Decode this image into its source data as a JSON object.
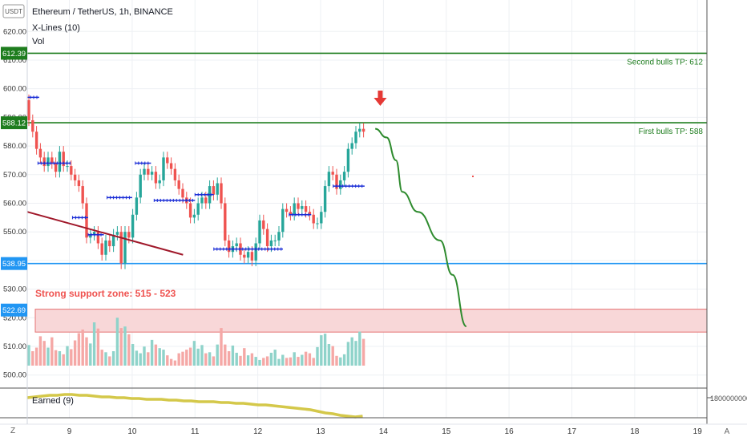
{
  "header": {
    "symbol_line": "Ethereum / TetherUS, 1h, BINANCE",
    "indicator": "X-Lines (10)",
    "volume_label": "Vol"
  },
  "corner": {
    "currency": "USDT",
    "z_label": "Z",
    "a_label": "A"
  },
  "colors": {
    "up": "#26a69a",
    "down": "#ef5350",
    "target_line": "#1e7d1e",
    "support_line": "#2196f3",
    "support_zone_fill": "#f8d7d8",
    "support_zone_border": "#e57373",
    "trendline": "#a0182a",
    "forecast": "#2e8b2e",
    "arrow": "#e53935",
    "xline_marker": "#1a2dd6",
    "oscillator": "#d4c84a"
  },
  "chart_data": {
    "type": "candlestick",
    "title": "Ethereum / TetherUS, 1h, BINANCE",
    "y_axis": {
      "ticks": [
        500,
        510,
        520,
        530,
        540,
        550,
        560,
        570,
        580,
        590,
        600,
        610,
        620
      ],
      "tick_labels": [
        "500.00",
        "510.00",
        "520.00",
        "530.00",
        "540.00",
        "550.00",
        "560.00",
        "570.00",
        "580.00",
        "590.00",
        "600.00",
        "610.00",
        "620.00"
      ],
      "range": [
        496,
        631
      ]
    },
    "x_axis": {
      "tick_labels": [
        "9",
        "10",
        "11",
        "12",
        "13",
        "14",
        "15",
        "16",
        "17",
        "18",
        "19"
      ],
      "range_days": [
        8.33,
        19.15
      ]
    },
    "price_labels": [
      {
        "value": 612.39,
        "text": "612.39",
        "color": "#1e7d1e"
      },
      {
        "value": 588.12,
        "text": "588.12",
        "color": "#1e7d1e"
      },
      {
        "value": 538.95,
        "text": "538.95",
        "color": "#2196f3"
      },
      {
        "value": 522.69,
        "text": "522.69",
        "color": "#2196f3"
      }
    ],
    "horizontal_levels": [
      {
        "value": 612.39,
        "label": "Second bulls TP: 612"
      },
      {
        "value": 588.12,
        "label": "First bulls TP: 588"
      },
      {
        "value": 538.95,
        "label": ""
      }
    ],
    "support_zone": {
      "low": 515,
      "high": 523,
      "label": "Strong support zone: 515 - 523"
    },
    "trendline": {
      "from": {
        "day": 8.33,
        "price": 557
      },
      "to": {
        "day": 10.81,
        "price": 542
      }
    },
    "forecast_path": [
      [
        13.87,
        586
      ],
      [
        14.05,
        583
      ],
      [
        14.2,
        575
      ],
      [
        14.3,
        564
      ],
      [
        14.55,
        557
      ],
      [
        14.9,
        547
      ],
      [
        15.1,
        535
      ],
      [
        15.32,
        517
      ]
    ],
    "arrow": {
      "day": 13.95,
      "price": 596
    },
    "xlines": [
      {
        "from": 8.33,
        "to": 8.52,
        "price": 597
      },
      {
        "from": 8.5,
        "to": 9.02,
        "price": 574
      },
      {
        "from": 9.05,
        "to": 9.3,
        "price": 555
      },
      {
        "from": 9.3,
        "to": 9.55,
        "price": 549
      },
      {
        "from": 9.6,
        "to": 10.0,
        "price": 562
      },
      {
        "from": 10.05,
        "to": 10.3,
        "price": 574
      },
      {
        "from": 10.35,
        "to": 11.0,
        "price": 561
      },
      {
        "from": 11.0,
        "to": 11.3,
        "price": 563
      },
      {
        "from": 11.3,
        "to": 12.4,
        "price": 544
      },
      {
        "from": 12.5,
        "to": 12.85,
        "price": 556
      },
      {
        "from": 13.2,
        "to": 13.7,
        "price": 566
      }
    ],
    "candles_close": [
      589,
      585,
      579,
      576,
      573,
      576,
      574,
      571,
      578,
      573,
      573,
      570,
      568,
      566,
      560,
      548,
      549,
      550,
      546,
      542,
      547,
      545,
      549,
      550,
      539,
      550,
      548,
      556,
      562,
      570,
      572,
      570,
      571,
      567,
      568,
      576,
      574,
      572,
      568,
      565,
      562,
      560,
      555,
      556,
      560,
      562,
      560,
      566,
      563,
      567,
      560,
      547,
      543,
      545,
      546,
      542,
      541,
      543,
      540,
      546,
      554,
      551,
      545,
      547,
      547,
      550,
      558,
      557,
      556,
      560,
      558,
      559,
      557,
      556,
      553,
      553,
      557,
      566,
      571,
      570,
      565,
      568,
      571,
      579,
      581,
      585,
      586,
      585
    ],
    "volume_ylim": [
      0,
      165
    ],
    "volume": [
      40,
      28,
      35,
      57,
      48,
      35,
      55,
      30,
      28,
      22,
      38,
      32,
      49,
      63,
      70,
      55,
      43,
      84,
      72,
      31,
      26,
      18,
      28,
      93,
      73,
      76,
      61,
      42,
      29,
      24,
      37,
      26,
      50,
      41,
      34,
      31,
      20,
      13,
      10,
      24,
      27,
      31,
      35,
      48,
      33,
      40,
      24,
      26,
      18,
      41,
      73,
      41,
      28,
      39,
      25,
      19,
      34,
      20,
      24,
      17,
      11,
      15,
      18,
      25,
      31,
      13,
      21,
      15,
      16,
      26,
      17,
      21,
      27,
      24,
      15,
      36,
      59,
      62,
      42,
      38,
      19,
      16,
      22,
      46,
      55,
      48,
      66,
      52
    ],
    "oscillator": {
      "name": "Earned (9)",
      "axis_label": "1800000000",
      "values": [
        496,
        495,
        494,
        493,
        493,
        492,
        492,
        493,
        493,
        494,
        495,
        495,
        496,
        496,
        497,
        497,
        498,
        498,
        498,
        499,
        499,
        500,
        500,
        501,
        501,
        501,
        502,
        502,
        503,
        503,
        504,
        505,
        505,
        506,
        507,
        508,
        509,
        510,
        511,
        513,
        515,
        516,
        518,
        519,
        520,
        519
      ]
    }
  }
}
